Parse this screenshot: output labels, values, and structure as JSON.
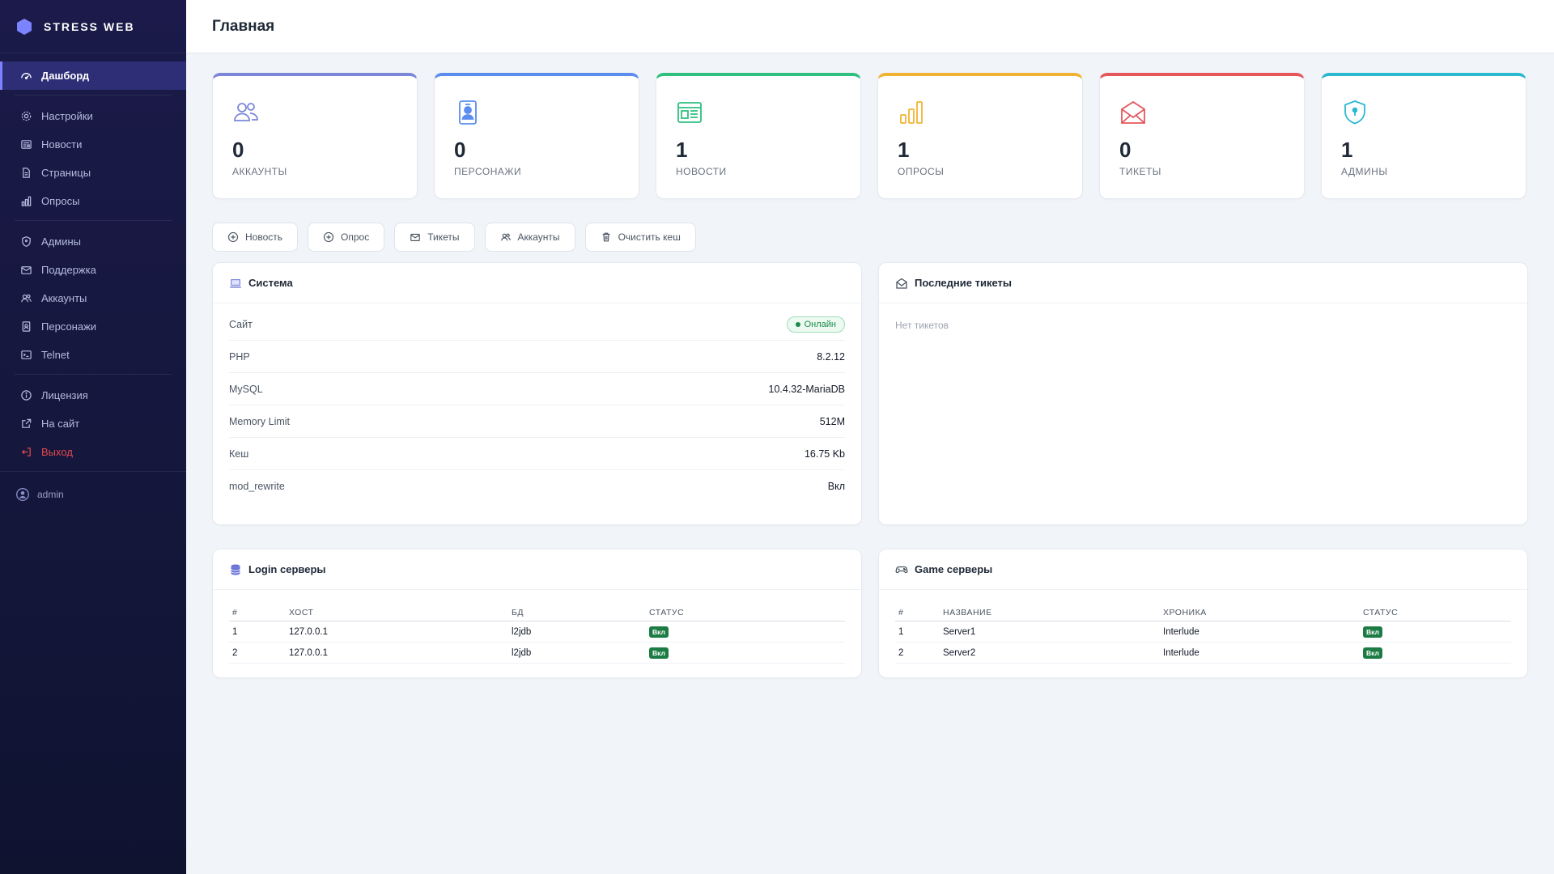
{
  "brand": {
    "name": "STRESS WEB"
  },
  "sidebar": {
    "items": [
      {
        "label": "Дашборд",
        "icon": "dashboard-icon",
        "active": true
      },
      {
        "label": "Настройки",
        "icon": "gear-icon"
      },
      {
        "label": "Новости",
        "icon": "news-icon"
      },
      {
        "label": "Страницы",
        "icon": "page-icon"
      },
      {
        "label": "Опросы",
        "icon": "bar-chart-icon"
      },
      {
        "label": "Админы",
        "icon": "shield-icon"
      },
      {
        "label": "Поддержка",
        "icon": "envelope-icon"
      },
      {
        "label": "Аккаунты",
        "icon": "users-icon"
      },
      {
        "label": "Персонажи",
        "icon": "id-badge-icon"
      },
      {
        "label": "Telnet",
        "icon": "terminal-icon"
      },
      {
        "label": "Лицензия",
        "icon": "info-icon"
      },
      {
        "label": "На сайт",
        "icon": "external-link-icon"
      },
      {
        "label": "Выход",
        "icon": "logout-icon"
      }
    ],
    "user": "admin"
  },
  "header": {
    "title": "Главная"
  },
  "stats": [
    {
      "value": "0",
      "label": "АККАУНТЫ",
      "color": "#7b86d8"
    },
    {
      "value": "0",
      "label": "ПЕРСОНАЖИ",
      "color": "#5b8def"
    },
    {
      "value": "1",
      "label": "НОВОСТИ",
      "color": "#2fbf7f"
    },
    {
      "value": "1",
      "label": "ОПРОСЫ",
      "color": "#f0b232"
    },
    {
      "value": "0",
      "label": "ТИКЕТЫ",
      "color": "#e5575c"
    },
    {
      "value": "1",
      "label": "АДМИНЫ",
      "color": "#2bb8d1"
    }
  ],
  "quick_actions": [
    "Новость",
    "Опрос",
    "Тикеты",
    "Аккаунты",
    "Очистить кеш"
  ],
  "system": {
    "title": "Система",
    "rows": [
      {
        "key": "Сайт",
        "value": "Онлайн"
      },
      {
        "key": "PHP",
        "value": "8.2.12"
      },
      {
        "key": "MySQL",
        "value": "10.4.32-MariaDB"
      },
      {
        "key": "Memory Limit",
        "value": "512M"
      },
      {
        "key": "Кеш",
        "value": "16.75 Kb"
      },
      {
        "key": "mod_rewrite",
        "value": "Вкл"
      }
    ]
  },
  "tickets": {
    "title": "Последние тикеты",
    "empty": "Нет тикетов"
  },
  "login_servers": {
    "title": "Login серверы",
    "headers": [
      "#",
      "ХОСТ",
      "БД",
      "СТАТУС"
    ],
    "rows": [
      [
        "1",
        "127.0.0.1",
        "l2jdb",
        "Вкл"
      ],
      [
        "2",
        "127.0.0.1",
        "l2jdb",
        "Вкл"
      ]
    ]
  },
  "game_servers": {
    "title": "Game серверы",
    "headers": [
      "#",
      "НАЗВАНИЕ",
      "ХРОНИКА",
      "СТАТУС"
    ],
    "rows": [
      [
        "1",
        "Server1",
        "Interlude",
        "Вкл"
      ],
      [
        "2",
        "Server2",
        "Interlude",
        "Вкл"
      ]
    ]
  }
}
